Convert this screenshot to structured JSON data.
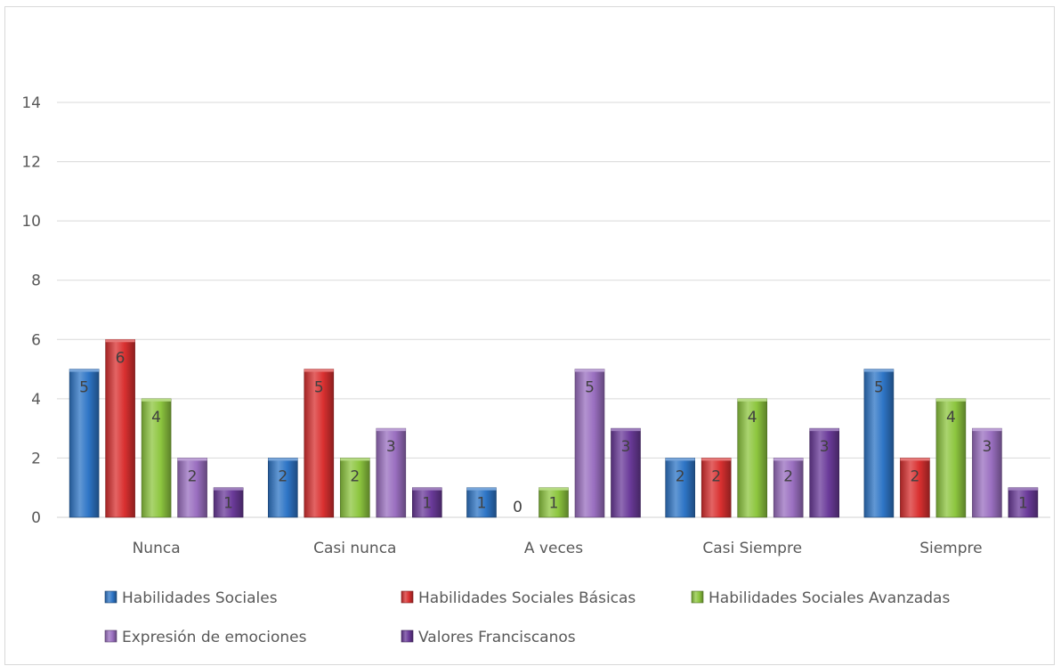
{
  "chart_data": {
    "type": "bar",
    "title": "",
    "xlabel": "",
    "ylabel": "",
    "ylim": [
      0,
      14
    ],
    "yticks": [
      0,
      2,
      4,
      6,
      8,
      10,
      12,
      14
    ],
    "grid": true,
    "legend_position": "bottom",
    "categories": [
      "Nunca",
      "Casi nunca",
      "A veces",
      "Casi Siempre",
      "Siempre"
    ],
    "series": [
      {
        "name": "Habilidades Sociales",
        "color": "#2e75c6",
        "values": [
          5,
          2,
          1,
          2,
          5
        ]
      },
      {
        "name": "Habilidades Sociales Básicas",
        "color": "#d93030",
        "values": [
          6,
          5,
          0,
          2,
          2
        ]
      },
      {
        "name": "Habilidades Sociales Avanzadas",
        "color": "#8dc63f",
        "values": [
          4,
          2,
          1,
          4,
          4
        ]
      },
      {
        "name": "Expresión de emociones",
        "color": "#9a6fc0",
        "values": [
          2,
          3,
          5,
          2,
          3
        ]
      },
      {
        "name": "Valores Franciscanos",
        "color": "#6a3a99",
        "values": [
          1,
          1,
          3,
          3,
          1
        ]
      }
    ]
  }
}
